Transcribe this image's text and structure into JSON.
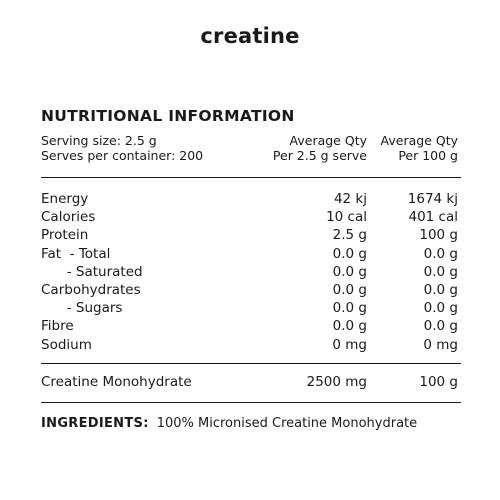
{
  "brand": "creatine",
  "heading": "NUTRITIONAL INFORMATION",
  "serving": {
    "size_label": "Serving size:  2.5 g",
    "serves_label": "Serves per container: 200",
    "col_qty_line1": "Average Qty",
    "col_qty_line2": "Per 2.5 g serve",
    "col_100_line1": "Average Qty",
    "col_100_line2": "Per 100 g"
  },
  "nutrients": [
    {
      "name": "Energy",
      "per_serve": "42 kj",
      "per_100g": "1674 kj"
    },
    {
      "name": "Calories",
      "per_serve": "10 cal",
      "per_100g": "401 cal"
    },
    {
      "name": "Protein",
      "per_serve": "2.5 g",
      "per_100g": "100 g"
    },
    {
      "name": "Fat  - Total",
      "per_serve": "0.0 g",
      "per_100g": "0.0 g"
    },
    {
      "name": "      - Saturated",
      "per_serve": "0.0 g",
      "per_100g": "0.0 g"
    },
    {
      "name": "Carbohydrates",
      "per_serve": "0.0 g",
      "per_100g": "0.0 g"
    },
    {
      "name": "      - Sugars",
      "per_serve": "0.0 g",
      "per_100g": "0.0 g"
    },
    {
      "name": "Fibre",
      "per_serve": "0.0 g",
      "per_100g": "0.0 g"
    },
    {
      "name": "Sodium",
      "per_serve": "0 mg",
      "per_100g": "0 mg"
    }
  ],
  "creatine_row": {
    "name": "Creatine Monohydrate",
    "per_serve": "2500 mg",
    "per_100g": "100 g"
  },
  "ingredients": {
    "label": "INGREDIENTS:",
    "text": "100% Micronised Creatine Monohydrate"
  }
}
